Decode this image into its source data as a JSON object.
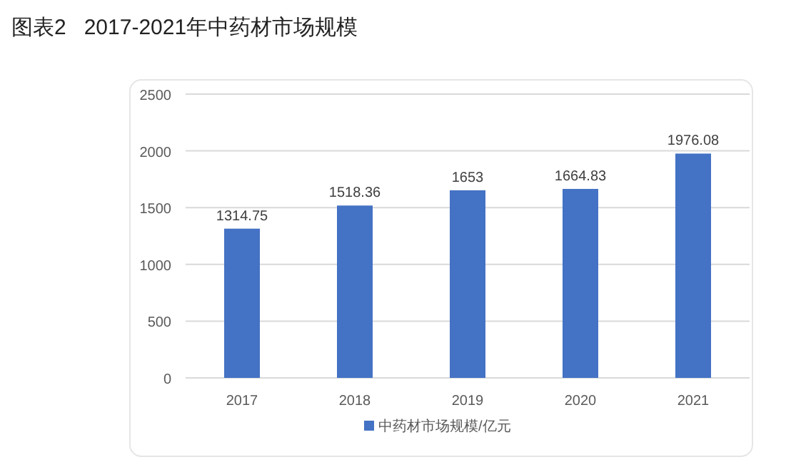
{
  "chart_data": {
    "type": "bar",
    "title": "图表2   2017-2021年中药材市场规模",
    "categories": [
      "2017",
      "2018",
      "2019",
      "2020",
      "2021"
    ],
    "series": [
      {
        "name": "中药材市场规模/亿元",
        "color": "#4472c4",
        "values": [
          1314.75,
          1518.36,
          1653,
          1664.83,
          1976.08
        ]
      }
    ],
    "ylim": [
      0,
      2500
    ],
    "yticks": [
      0,
      500,
      1000,
      1500,
      2000,
      2500
    ],
    "grid": "y",
    "legend": "bottom",
    "data_labels": true
  }
}
